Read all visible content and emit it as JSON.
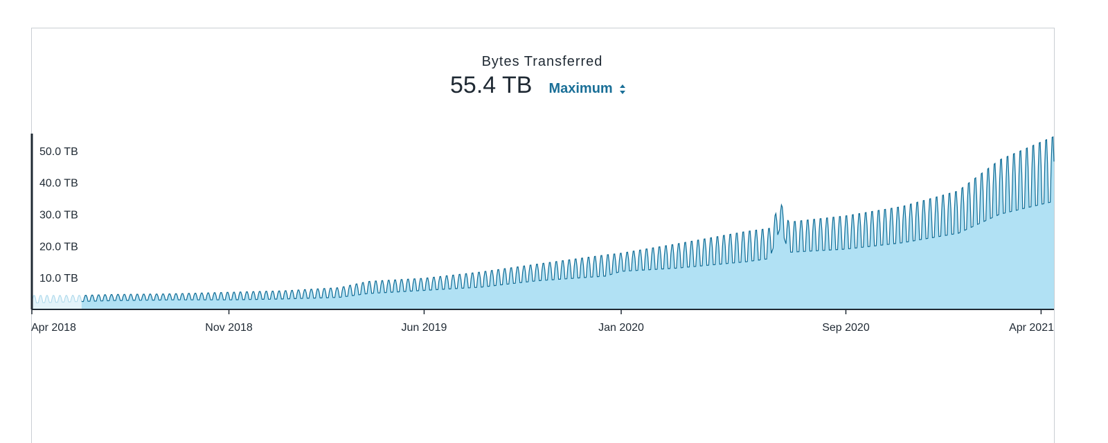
{
  "header": {
    "title": "Bytes Transferred",
    "value": "55.4 TB",
    "aggregation_label": "Maximum"
  },
  "colors": {
    "line": "#0e6a93",
    "fill": "#b1e1f4",
    "fill_faded": "#e3f3fa",
    "axis": "#1f2933"
  },
  "chart_data": {
    "type": "area",
    "title": "Bytes Transferred",
    "ylabel": "",
    "xlabel": "",
    "y_unit": "TB",
    "ylim": [
      0,
      55.4
    ],
    "xlim": [
      "2018-04-01",
      "2021-04-15"
    ],
    "y_ticks": [
      {
        "value": 10,
        "label": "10.0 TB"
      },
      {
        "value": 20,
        "label": "20.0 TB"
      },
      {
        "value": 30,
        "label": "30.0 TB"
      },
      {
        "value": 40,
        "label": "40.0 TB"
      },
      {
        "value": 50,
        "label": "50.0 TB"
      }
    ],
    "x_ticks": [
      {
        "date": "2018-04-01",
        "label": "Apr 2018"
      },
      {
        "date": "2018-11-01",
        "label": "Nov 2018"
      },
      {
        "date": "2019-06-01",
        "label": "Jun 2019"
      },
      {
        "date": "2020-01-01",
        "label": "Jan 2020"
      },
      {
        "date": "2020-09-01",
        "label": "Sep 2020"
      },
      {
        "date": "2021-04-01",
        "label": "Apr 2021"
      }
    ],
    "grid": false,
    "series": [
      {
        "faded_until": "2018-05-25",
        "weekly_peaks": {
          "x": [
            "2018-04-01",
            "2018-05-25",
            "2018-07-01",
            "2018-09-01",
            "2018-11-01",
            "2019-01-01",
            "2019-03-01",
            "2019-04-01",
            "2019-06-01",
            "2019-08-01",
            "2019-10-01",
            "2019-12-15",
            "2020-01-01",
            "2020-03-01",
            "2020-05-15",
            "2020-06-10",
            "2020-06-22",
            "2020-07-01",
            "2020-09-01",
            "2020-11-01",
            "2021-01-01",
            "2021-02-15",
            "2021-04-14"
          ],
          "y": [
            4.5,
            4.5,
            4.8,
            5.0,
            5.5,
            6.0,
            7.0,
            9.0,
            10.0,
            12.0,
            14.5,
            17.5,
            18.0,
            21.0,
            25.0,
            26.0,
            34.0,
            28.0,
            30.0,
            33.0,
            38.0,
            48.0,
            55.4
          ]
        },
        "weekly_troughs": {
          "x": [
            "2018-04-01",
            "2018-05-25",
            "2018-07-01",
            "2018-09-01",
            "2018-11-01",
            "2019-01-01",
            "2019-03-01",
            "2019-04-01",
            "2019-06-01",
            "2019-08-01",
            "2019-10-01",
            "2019-12-15",
            "2020-01-01",
            "2020-03-01",
            "2020-05-15",
            "2020-06-10",
            "2020-06-22",
            "2020-07-01",
            "2020-09-01",
            "2020-11-01",
            "2021-01-01",
            "2021-02-15",
            "2021-04-14"
          ],
          "y": [
            2.0,
            2.5,
            2.8,
            3.0,
            3.0,
            3.3,
            3.8,
            5.0,
            6.0,
            7.0,
            9.0,
            10.5,
            12.0,
            13.0,
            15.0,
            16.0,
            26.0,
            18.0,
            19.0,
            21.0,
            24.0,
            30.0,
            34.0
          ]
        }
      }
    ]
  }
}
